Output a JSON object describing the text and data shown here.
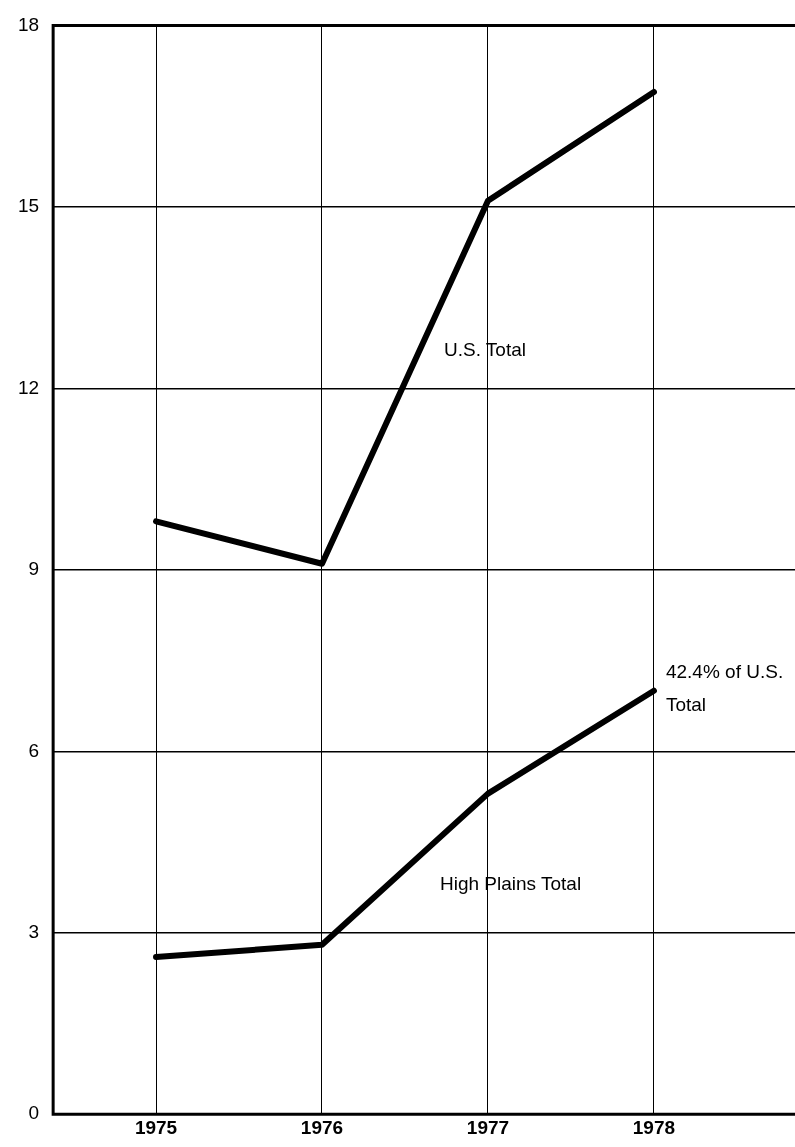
{
  "chart_data": {
    "type": "line",
    "x": [
      1975,
      1976,
      1977,
      1978
    ],
    "series": [
      {
        "name": "U.S. Total",
        "color": "#000000",
        "values": [
          9.8,
          9.1,
          15.1,
          16.9
        ]
      },
      {
        "name": "High Plains Total",
        "color": "#000000",
        "values": [
          2.6,
          2.8,
          5.3,
          7.0
        ]
      }
    ],
    "xlim": [
      1974.38,
      1978.85
    ],
    "xticks": [
      1975,
      1976,
      1977,
      1978
    ],
    "ylim": [
      0,
      18
    ],
    "yticks": [
      0,
      3,
      6,
      9,
      12,
      15,
      18
    ],
    "annotations": [
      {
        "text": "42.4% of U.S. Total",
        "x": 1978,
        "y": 7.0
      }
    ],
    "grid": true,
    "legend": false,
    "marker": "none",
    "line_style": "solid"
  }
}
